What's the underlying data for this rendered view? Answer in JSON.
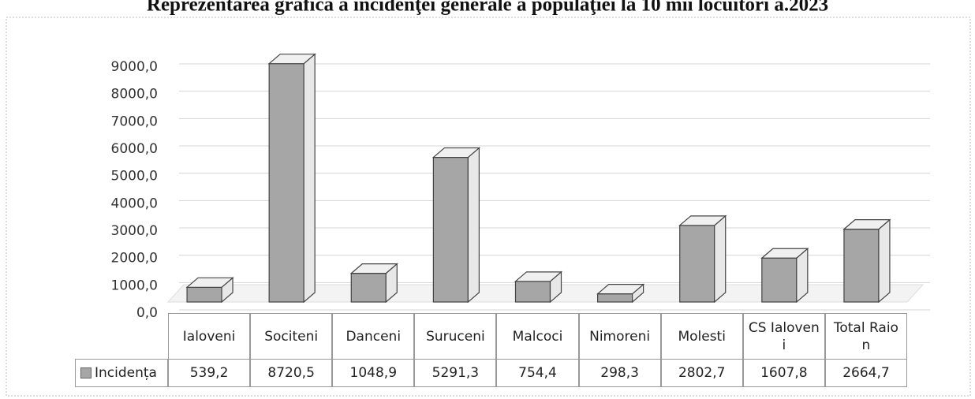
{
  "chart_data": {
    "type": "bar",
    "title": "Reprezentarea grafica a incidenţei generale a populaţiei la 10 mii locuitori a.2023",
    "categories": [
      "Ialoveni",
      "Sociteni",
      "Danceni",
      "Suruceni",
      "Malcoci",
      "Nimoreni",
      "Molesti",
      "CS Ialoveni",
      "Total Raion"
    ],
    "series": [
      {
        "name": "Incidența",
        "color": "#a6a6a6",
        "values": [
          539.2,
          8720.5,
          1048.9,
          5291.3,
          754.4,
          298.3,
          2802.7,
          1607.8,
          2664.7
        ],
        "value_labels": [
          "539,2",
          "8720,5",
          "1048,9",
          "5291,3",
          "754,4",
          "298,3",
          "2802,7",
          "1607,8",
          "2664,7"
        ]
      }
    ],
    "ylim": [
      0,
      9000
    ],
    "yticks": [
      {
        "value": 0,
        "label": "0,0"
      },
      {
        "value": 1000,
        "label": "1000,0"
      },
      {
        "value": 2000,
        "label": "2000,0"
      },
      {
        "value": 3000,
        "label": "3000,0"
      },
      {
        "value": 4000,
        "label": "4000,0"
      },
      {
        "value": 5000,
        "label": "5000,0"
      },
      {
        "value": 6000,
        "label": "6000,0"
      },
      {
        "value": 7000,
        "label": "7000,0"
      },
      {
        "value": 8000,
        "label": "8000,0"
      },
      {
        "value": 9000,
        "label": "9000,0"
      }
    ],
    "grid": true
  }
}
